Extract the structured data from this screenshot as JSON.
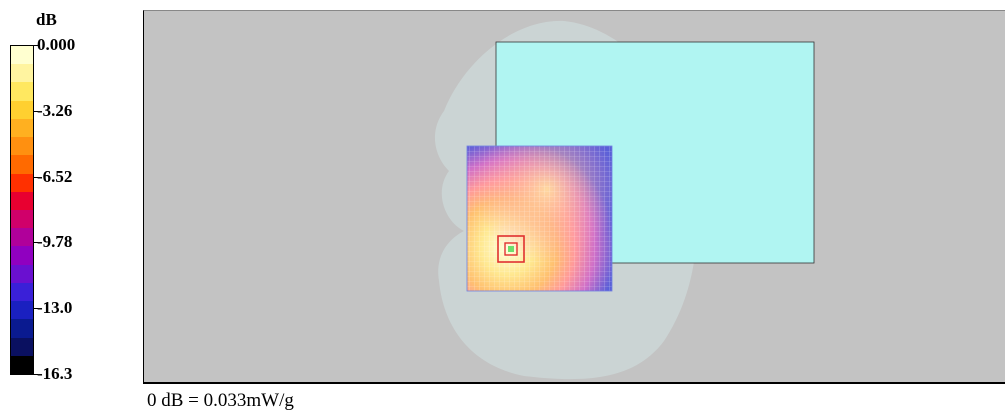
{
  "legend": {
    "unit": "dB",
    "ticks": [
      "0.000",
      "-3.26",
      "-6.52",
      "-9.78",
      "-13.0",
      "-16.3"
    ],
    "colors": [
      "#ffffd0",
      "#fff4a0",
      "#ffe860",
      "#ffd030",
      "#ffb020",
      "#ff9010",
      "#ff6a00",
      "#ff3000",
      "#e80030",
      "#d0006a",
      "#b0009a",
      "#9000c0",
      "#6a10d0",
      "#3a20d8",
      "#1a20c0",
      "#0a1a90",
      "#0a1060",
      "#000000"
    ]
  },
  "plot": {
    "background": "#c3c3c3",
    "phantom_color": "#ccd6d6",
    "device_color": "#b0f5f2",
    "hotspot_marker_color": "#e03030"
  },
  "footer": {
    "reference": "0 dB = 0.033mW/g"
  }
}
